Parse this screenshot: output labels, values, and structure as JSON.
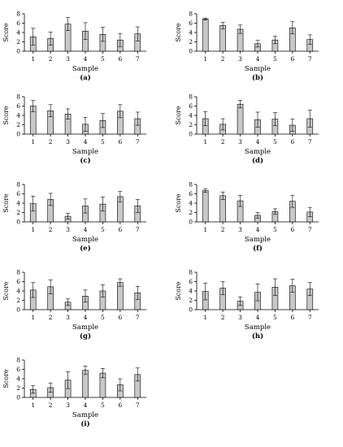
{
  "chart_data": [
    {
      "type": "bar",
      "panel_label": "(a)",
      "xlabel": "Sample",
      "ylabel": "Score",
      "ylim": [
        0,
        8
      ],
      "yticks": [
        0,
        2,
        4,
        6,
        8
      ],
      "categories": [
        "1",
        "2",
        "3",
        "4",
        "5",
        "6",
        "7"
      ],
      "values": [
        3.1,
        2.7,
        5.8,
        4.3,
        3.6,
        2.4,
        3.7
      ],
      "errors": [
        1.8,
        1.4,
        1.4,
        1.8,
        1.5,
        1.4,
        1.5
      ]
    },
    {
      "type": "bar",
      "panel_label": "(b)",
      "xlabel": "Sample",
      "ylabel": "Score",
      "ylim": [
        0,
        8
      ],
      "yticks": [
        0,
        2,
        4,
        6,
        8
      ],
      "categories": [
        "1",
        "2",
        "3",
        "4",
        "5",
        "6",
        "7"
      ],
      "values": [
        6.9,
        5.5,
        4.7,
        1.6,
        2.4,
        5.0,
        2.5
      ],
      "errors": [
        0.2,
        0.7,
        0.9,
        0.7,
        0.8,
        1.3,
        1.0
      ]
    },
    {
      "type": "bar",
      "panel_label": "(c)",
      "xlabel": "Sample",
      "ylabel": "Score",
      "ylim": [
        0,
        8
      ],
      "yticks": [
        0,
        2,
        4,
        6,
        8
      ],
      "categories": [
        "1",
        "2",
        "3",
        "4",
        "5",
        "6",
        "7"
      ],
      "values": [
        6.0,
        5.0,
        4.3,
        2.1,
        2.9,
        4.9,
        3.3
      ],
      "errors": [
        1.2,
        1.3,
        1.1,
        1.5,
        1.5,
        1.4,
        1.4
      ]
    },
    {
      "type": "bar",
      "panel_label": "(d)",
      "xlabel": "Sample",
      "ylabel": "Score",
      "ylim": [
        0,
        8
      ],
      "yticks": [
        0,
        2,
        4,
        6,
        8
      ],
      "categories": [
        "1",
        "2",
        "3",
        "4",
        "5",
        "6",
        "7"
      ],
      "values": [
        3.3,
        2.1,
        6.4,
        3.1,
        3.2,
        1.9,
        3.3
      ],
      "errors": [
        1.5,
        1.2,
        0.8,
        1.6,
        1.4,
        1.3,
        1.8
      ]
    },
    {
      "type": "bar",
      "panel_label": "(e)",
      "xlabel": "Sample",
      "ylabel": "Score",
      "ylim": [
        0,
        8
      ],
      "yticks": [
        0,
        2,
        4,
        6,
        8
      ],
      "categories": [
        "1",
        "2",
        "3",
        "4",
        "5",
        "6",
        "7"
      ],
      "values": [
        3.9,
        4.8,
        1.2,
        3.4,
        3.8,
        5.4,
        3.4
      ],
      "errors": [
        1.6,
        1.3,
        0.6,
        1.5,
        1.5,
        1.1,
        1.4
      ]
    },
    {
      "type": "bar",
      "panel_label": "(f)",
      "xlabel": "Sample",
      "ylabel": "Score",
      "ylim": [
        0,
        8
      ],
      "yticks": [
        0,
        2,
        4,
        6,
        8
      ],
      "categories": [
        "1",
        "2",
        "3",
        "4",
        "5",
        "6",
        "7"
      ],
      "values": [
        6.7,
        5.6,
        4.5,
        1.4,
        2.2,
        4.4,
        2.1
      ],
      "errors": [
        0.4,
        0.8,
        1.2,
        0.6,
        0.6,
        1.3,
        1.0
      ]
    },
    {
      "type": "bar",
      "panel_label": "(g)",
      "xlabel": "Sample",
      "ylabel": "Score",
      "ylim": [
        0,
        8
      ],
      "yticks": [
        0,
        2,
        4,
        6,
        8
      ],
      "categories": [
        "1",
        "2",
        "3",
        "4",
        "5",
        "6",
        "7"
      ],
      "values": [
        4.2,
        4.9,
        1.6,
        2.9,
        4.0,
        5.8,
        3.6
      ],
      "errors": [
        1.6,
        1.5,
        0.7,
        1.3,
        1.3,
        0.8,
        1.4
      ]
    },
    {
      "type": "bar",
      "panel_label": "(h)",
      "xlabel": "Sample",
      "ylabel": "Score",
      "ylim": [
        0,
        8
      ],
      "yticks": [
        0,
        2,
        4,
        6,
        8
      ],
      "categories": [
        "1",
        "2",
        "3",
        "4",
        "5",
        "6",
        "7"
      ],
      "values": [
        3.9,
        4.6,
        1.8,
        3.7,
        4.8,
        5.1,
        4.4
      ],
      "errors": [
        1.8,
        1.4,
        0.9,
        1.8,
        1.8,
        1.4,
        1.4
      ]
    },
    {
      "type": "bar",
      "panel_label": "(i)",
      "xlabel": "Sample",
      "ylabel": "Score",
      "ylim": [
        0,
        8
      ],
      "yticks": [
        0,
        2,
        4,
        6,
        8
      ],
      "categories": [
        "1",
        "2",
        "3",
        "4",
        "5",
        "6",
        "7"
      ],
      "values": [
        1.7,
        2.1,
        3.7,
        5.8,
        5.2,
        2.7,
        4.9
      ],
      "errors": [
        0.8,
        1.0,
        1.8,
        0.9,
        1.0,
        1.3,
        1.4
      ]
    }
  ],
  "colors": {
    "bar_fill": "#c8c8c8",
    "bar_stroke": "#000000"
  }
}
